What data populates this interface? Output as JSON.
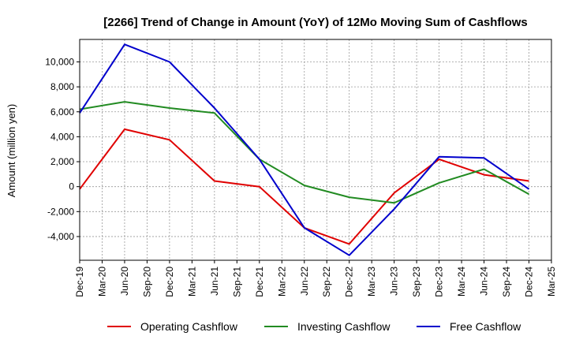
{
  "chart_data": {
    "type": "line",
    "title": "[2266]  Trend of Change in Amount (YoY) of 12Mo Moving Sum of Cashflows",
    "xlabel": "",
    "ylabel": "Amount (million yen)",
    "categories": [
      "Dec-19",
      "Mar-20",
      "Jun-20",
      "Sep-20",
      "Dec-20",
      "Mar-21",
      "Jun-21",
      "Sep-21",
      "Dec-21",
      "Mar-22",
      "Jun-22",
      "Sep-22",
      "Dec-22",
      "Mar-23",
      "Jun-23",
      "Sep-23",
      "Dec-23",
      "Mar-24",
      "Jun-24",
      "Sep-24",
      "Dec-24",
      "Mar-25"
    ],
    "ylim": [
      -5900,
      11800
    ],
    "yticks": [
      -4000,
      -2000,
      0,
      2000,
      4000,
      6000,
      8000,
      10000
    ],
    "ytick_labels": [
      "-4,000",
      "-2,000",
      "0",
      "2,000",
      "4,000",
      "6,000",
      "8,000",
      "10,000"
    ],
    "grid": true,
    "legend_position": "bottom",
    "series": [
      {
        "name": "Operating Cashflow",
        "color": "#e00000",
        "points": [
          [
            0,
            -200
          ],
          [
            2,
            4600
          ],
          [
            4,
            3750
          ],
          [
            6,
            450
          ],
          [
            8,
            0
          ],
          [
            10,
            -3300
          ],
          [
            12,
            -4600
          ],
          [
            14,
            -500
          ],
          [
            16,
            2200
          ],
          [
            18,
            950
          ],
          [
            20,
            450
          ]
        ]
      },
      {
        "name": "Investing Cashflow",
        "color": "#228b22",
        "points": [
          [
            0,
            6200
          ],
          [
            2,
            6800
          ],
          [
            4,
            6300
          ],
          [
            6,
            5900
          ],
          [
            8,
            2200
          ],
          [
            10,
            100
          ],
          [
            12,
            -850
          ],
          [
            14,
            -1300
          ],
          [
            16,
            300
          ],
          [
            18,
            1400
          ],
          [
            20,
            -600
          ]
        ]
      },
      {
        "name": "Free Cashflow",
        "color": "#0000cc",
        "points": [
          [
            0,
            5900
          ],
          [
            2,
            11400
          ],
          [
            4,
            10000
          ],
          [
            6,
            6300
          ],
          [
            8,
            2200
          ],
          [
            10,
            -3300
          ],
          [
            12,
            -5500
          ],
          [
            14,
            -1800
          ],
          [
            16,
            2400
          ],
          [
            18,
            2300
          ],
          [
            20,
            -200
          ]
        ]
      }
    ]
  }
}
